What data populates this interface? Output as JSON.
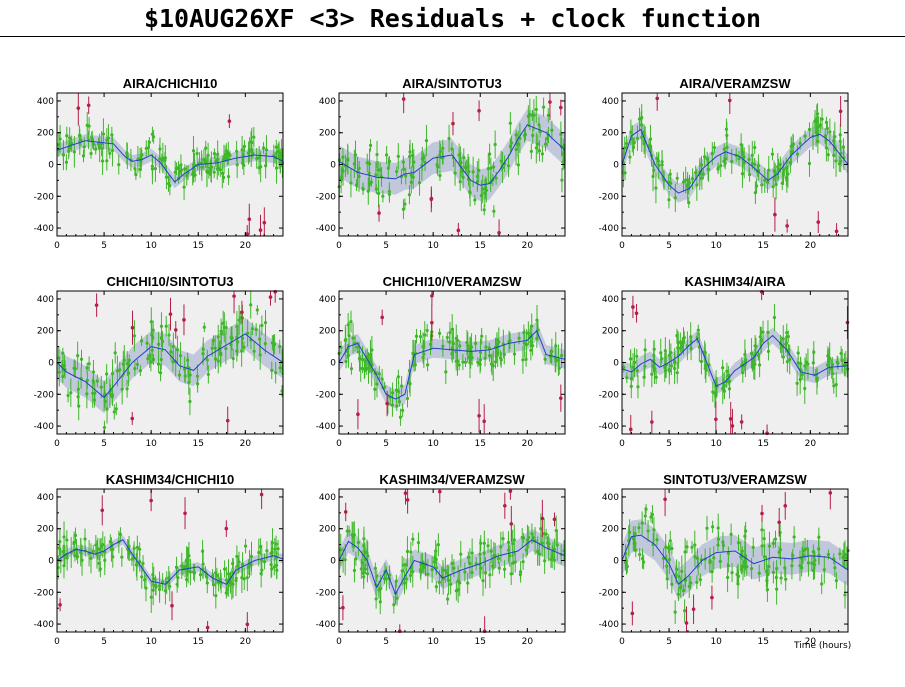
{
  "page": {
    "title": "$10AUG26XF <3> Residuals + clock function",
    "x_axis_note": "Time (hours)"
  },
  "colors": {
    "panel_background": "#efefef",
    "good_points": "#3fb62a",
    "flagged_points": "#b51e47",
    "clock_function_line": "#2240c8",
    "uncertainty_band": "#c2c8dc"
  },
  "chart_data": [
    {
      "type": "scatter",
      "title": "AIRA/CHICHI10",
      "xlim": [
        0,
        24
      ],
      "ylim": [
        -450,
        450
      ],
      "xticks": [
        0,
        5,
        10,
        15,
        20
      ],
      "yticks": [
        -400,
        -200,
        0,
        200,
        400
      ],
      "clock_function": [
        [
          0,
          90
        ],
        [
          1,
          110
        ],
        [
          3,
          150
        ],
        [
          4.5,
          140
        ],
        [
          6,
          130
        ],
        [
          7.2,
          50
        ],
        [
          8,
          20
        ],
        [
          9,
          30
        ],
        [
          10,
          60
        ],
        [
          11,
          10
        ],
        [
          12.5,
          -110
        ],
        [
          13.5,
          -60
        ],
        [
          15,
          0
        ],
        [
          17,
          10
        ],
        [
          19,
          40
        ],
        [
          21,
          60
        ],
        [
          23,
          50
        ],
        [
          24,
          20
        ]
      ],
      "band_halfwidth": 40
    },
    {
      "type": "scatter",
      "title": "AIRA/SINTOTU3",
      "xlim": [
        0,
        24
      ],
      "ylim": [
        -450,
        450
      ],
      "xticks": [
        0,
        5,
        10,
        15,
        20
      ],
      "yticks": [
        -400,
        -200,
        0,
        200,
        400
      ],
      "clock_function": [
        [
          0,
          20
        ],
        [
          2,
          -50
        ],
        [
          4,
          -80
        ],
        [
          6,
          -90
        ],
        [
          7,
          -60
        ],
        [
          8,
          -50
        ],
        [
          10,
          40
        ],
        [
          12,
          60
        ],
        [
          13,
          -20
        ],
        [
          14,
          -100
        ],
        [
          15,
          -130
        ],
        [
          16,
          -120
        ],
        [
          17,
          -40
        ],
        [
          18,
          50
        ],
        [
          19,
          160
        ],
        [
          20,
          250
        ],
        [
          22,
          200
        ],
        [
          24,
          90
        ]
      ],
      "band_halfwidth": 100
    },
    {
      "type": "scatter",
      "title": "AIRA/VERAMZSW",
      "xlim": [
        0,
        24
      ],
      "ylim": [
        -450,
        450
      ],
      "xticks": [
        0,
        5,
        10,
        15,
        20
      ],
      "yticks": [
        -400,
        -200,
        0,
        200,
        400
      ],
      "clock_function": [
        [
          0,
          0
        ],
        [
          1,
          180
        ],
        [
          2,
          220
        ],
        [
          3.5,
          0
        ],
        [
          5,
          -130
        ],
        [
          6,
          -180
        ],
        [
          7.2,
          -150
        ],
        [
          8.5,
          -30
        ],
        [
          10,
          50
        ],
        [
          11,
          80
        ],
        [
          12.5,
          50
        ],
        [
          14,
          -20
        ],
        [
          15.5,
          -100
        ],
        [
          16.5,
          -60
        ],
        [
          18,
          60
        ],
        [
          20,
          170
        ],
        [
          21,
          190
        ],
        [
          22,
          150
        ],
        [
          24,
          0
        ]
      ],
      "band_halfwidth": 60
    },
    {
      "type": "scatter",
      "title": "CHICHI10/SINTOTU3",
      "xlim": [
        0,
        24
      ],
      "ylim": [
        -450,
        450
      ],
      "xticks": [
        0,
        5,
        10,
        15,
        20
      ],
      "yticks": [
        -400,
        -200,
        0,
        200,
        400
      ],
      "clock_function": [
        [
          0,
          0
        ],
        [
          1,
          -60
        ],
        [
          3,
          -120
        ],
        [
          5,
          -220
        ],
        [
          6,
          -150
        ],
        [
          8,
          0
        ],
        [
          10,
          100
        ],
        [
          11.5,
          80
        ],
        [
          13,
          -20
        ],
        [
          14.5,
          -50
        ],
        [
          16,
          40
        ],
        [
          18,
          110
        ],
        [
          20,
          180
        ],
        [
          22,
          80
        ],
        [
          24,
          0
        ]
      ],
      "band_halfwidth": 100
    },
    {
      "type": "scatter",
      "title": "CHICHI10/VERAMZSW",
      "xlim": [
        0,
        24
      ],
      "ylim": [
        -450,
        450
      ],
      "xticks": [
        0,
        5,
        10,
        15,
        20
      ],
      "yticks": [
        -400,
        -200,
        0,
        200,
        400
      ],
      "clock_function": [
        [
          0,
          0
        ],
        [
          1,
          100
        ],
        [
          2,
          120
        ],
        [
          3,
          20
        ],
        [
          4,
          -80
        ],
        [
          5,
          -200
        ],
        [
          6,
          -230
        ],
        [
          7,
          -200
        ],
        [
          8,
          50
        ],
        [
          10,
          90
        ],
        [
          12,
          80
        ],
        [
          14,
          70
        ],
        [
          16,
          80
        ],
        [
          18,
          120
        ],
        [
          20,
          140
        ],
        [
          21,
          200
        ],
        [
          22,
          50
        ],
        [
          24,
          20
        ]
      ],
      "band_halfwidth": 60
    },
    {
      "type": "scatter",
      "title": "KASHIM34/AIRA",
      "xlim": [
        0,
        24
      ],
      "ylim": [
        -450,
        450
      ],
      "xticks": [
        0,
        5,
        10,
        15,
        20
      ],
      "yticks": [
        -400,
        -200,
        0,
        200,
        400
      ],
      "clock_function": [
        [
          0,
          -40
        ],
        [
          1,
          -60
        ],
        [
          2,
          -10
        ],
        [
          3,
          20
        ],
        [
          4,
          -30
        ],
        [
          5,
          0
        ],
        [
          6,
          40
        ],
        [
          7,
          100
        ],
        [
          8,
          150
        ],
        [
          9,
          0
        ],
        [
          10,
          -150
        ],
        [
          11,
          -120
        ],
        [
          12,
          -50
        ],
        [
          14,
          30
        ],
        [
          15,
          120
        ],
        [
          16,
          170
        ],
        [
          17.5,
          80
        ],
        [
          19,
          -60
        ],
        [
          20.5,
          -80
        ],
        [
          22,
          -30
        ],
        [
          24,
          -20
        ]
      ],
      "band_halfwidth": 50
    },
    {
      "type": "scatter",
      "title": "KASHIM34/CHICHI10",
      "xlim": [
        0,
        24
      ],
      "ylim": [
        -450,
        450
      ],
      "xticks": [
        0,
        5,
        10,
        15,
        20
      ],
      "yticks": [
        -400,
        -200,
        0,
        200,
        400
      ],
      "clock_function": [
        [
          0,
          0
        ],
        [
          1,
          40
        ],
        [
          2,
          70
        ],
        [
          3,
          60
        ],
        [
          4,
          40
        ],
        [
          5,
          60
        ],
        [
          6,
          100
        ],
        [
          7,
          130
        ],
        [
          8,
          40
        ],
        [
          10,
          -130
        ],
        [
          11.5,
          -150
        ],
        [
          13,
          -60
        ],
        [
          15,
          -40
        ],
        [
          16.5,
          -110
        ],
        [
          18,
          -150
        ],
        [
          19,
          -60
        ],
        [
          21,
          0
        ],
        [
          23,
          30
        ],
        [
          24,
          10
        ]
      ],
      "band_halfwidth": 30
    },
    {
      "type": "scatter",
      "title": "KASHIM34/VERAMZSW",
      "xlim": [
        0,
        24
      ],
      "ylim": [
        -450,
        450
      ],
      "xticks": [
        0,
        5,
        10,
        15,
        20
      ],
      "yticks": [
        -400,
        -200,
        0,
        200,
        400
      ],
      "clock_function": [
        [
          0,
          0
        ],
        [
          1,
          120
        ],
        [
          2,
          80
        ],
        [
          3,
          0
        ],
        [
          4,
          -170
        ],
        [
          5,
          -60
        ],
        [
          6,
          -210
        ],
        [
          7,
          -100
        ],
        [
          8,
          0
        ],
        [
          10,
          -40
        ],
        [
          11,
          -110
        ],
        [
          13,
          -60
        ],
        [
          15,
          -20
        ],
        [
          17,
          30
        ],
        [
          19,
          60
        ],
        [
          20.5,
          130
        ],
        [
          22,
          80
        ],
        [
          24,
          30
        ]
      ],
      "band_halfwidth": 70
    },
    {
      "type": "scatter",
      "title": "SINTOTU3/VERAMZSW",
      "xlim": [
        0,
        24
      ],
      "ylim": [
        -450,
        450
      ],
      "xticks": [
        0,
        5,
        10,
        15,
        20
      ],
      "yticks": [
        -400,
        -200,
        0,
        200,
        400
      ],
      "clock_function": [
        [
          0,
          0
        ],
        [
          1,
          150
        ],
        [
          2,
          160
        ],
        [
          3.5,
          100
        ],
        [
          5,
          -20
        ],
        [
          6,
          -150
        ],
        [
          7,
          -100
        ],
        [
          8.5,
          0
        ],
        [
          10,
          50
        ],
        [
          12,
          60
        ],
        [
          14,
          -20
        ],
        [
          16,
          20
        ],
        [
          18,
          10
        ],
        [
          20,
          30
        ],
        [
          22,
          20
        ],
        [
          24,
          -60
        ]
      ],
      "band_halfwidth": 100
    }
  ]
}
